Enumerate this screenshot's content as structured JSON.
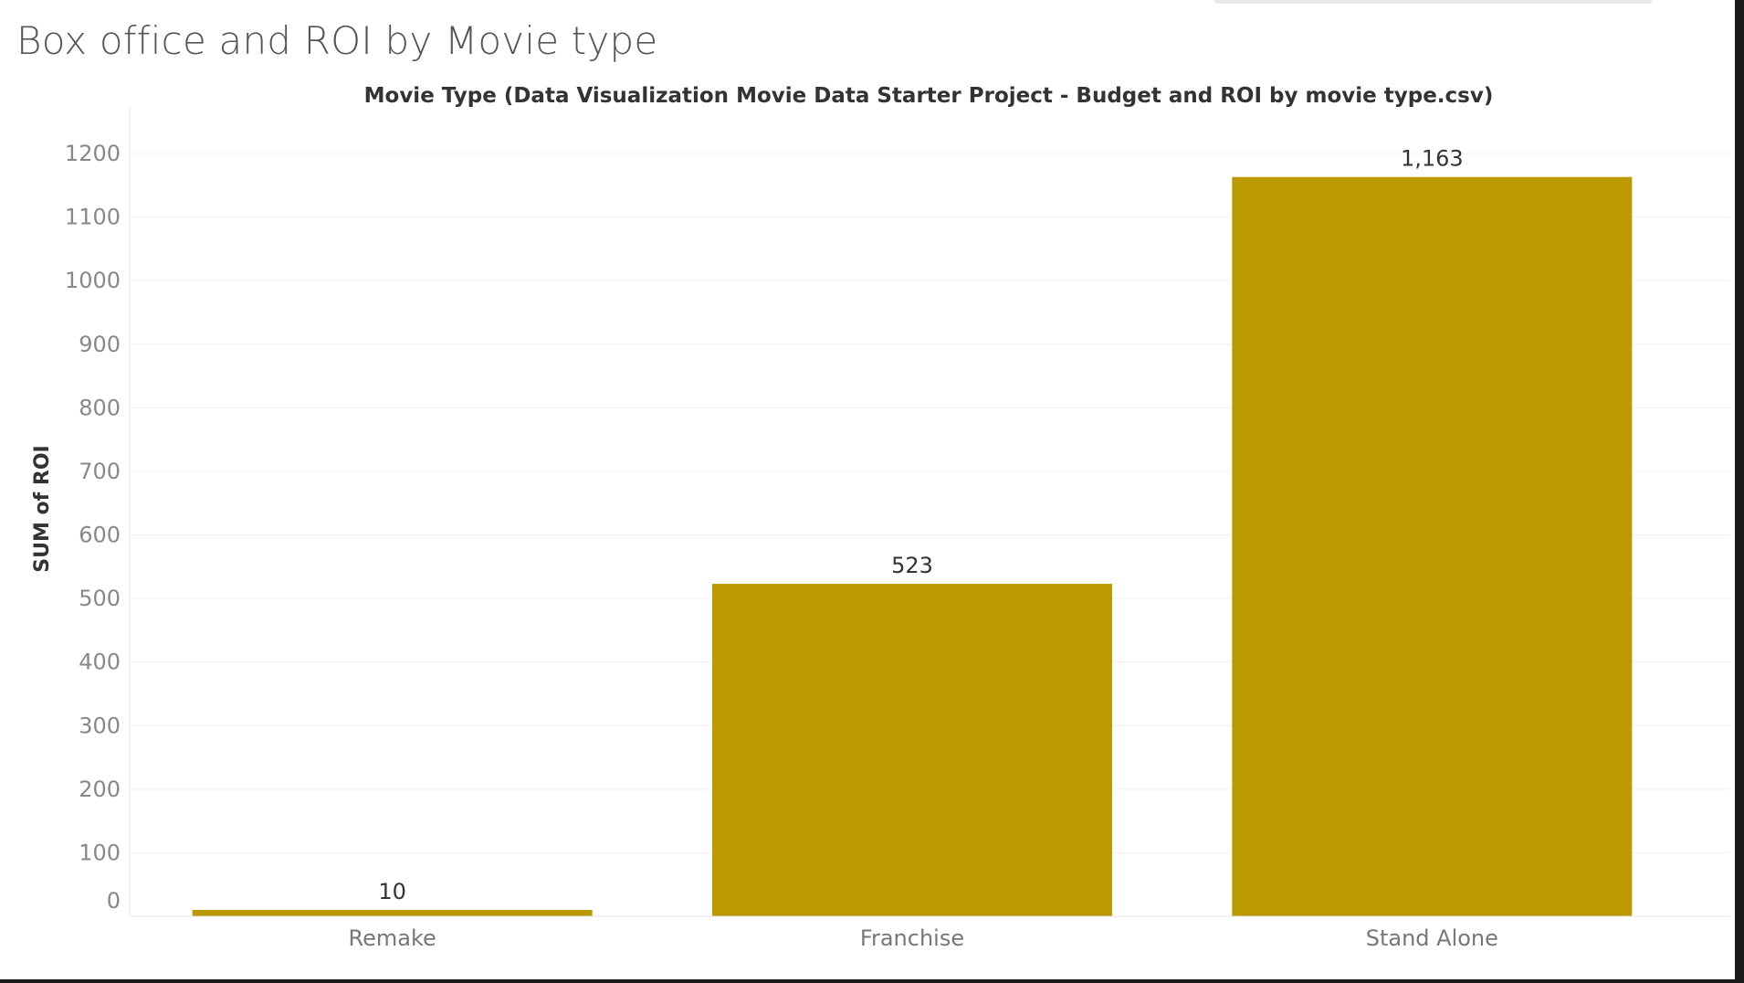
{
  "dashboard": {
    "title": "Box office and ROI by Movie type"
  },
  "chart_data": {
    "type": "bar",
    "title": "Movie Type (Data Visualization Movie Data Starter Project - Budget and ROI by movie type.csv)",
    "xlabel": "",
    "ylabel": "SUM of ROI",
    "categories": [
      "Remake",
      "Franchise",
      "Stand Alone"
    ],
    "values": [
      10,
      523,
      1163
    ],
    "data_labels": [
      "10",
      "523",
      "1,163"
    ],
    "ylim": [
      0,
      1200
    ],
    "yticks": [
      0,
      100,
      200,
      300,
      400,
      500,
      600,
      700,
      800,
      900,
      1000,
      1100,
      1200
    ],
    "grid": true,
    "legend": "none",
    "bar_color": "#bb9a00"
  }
}
